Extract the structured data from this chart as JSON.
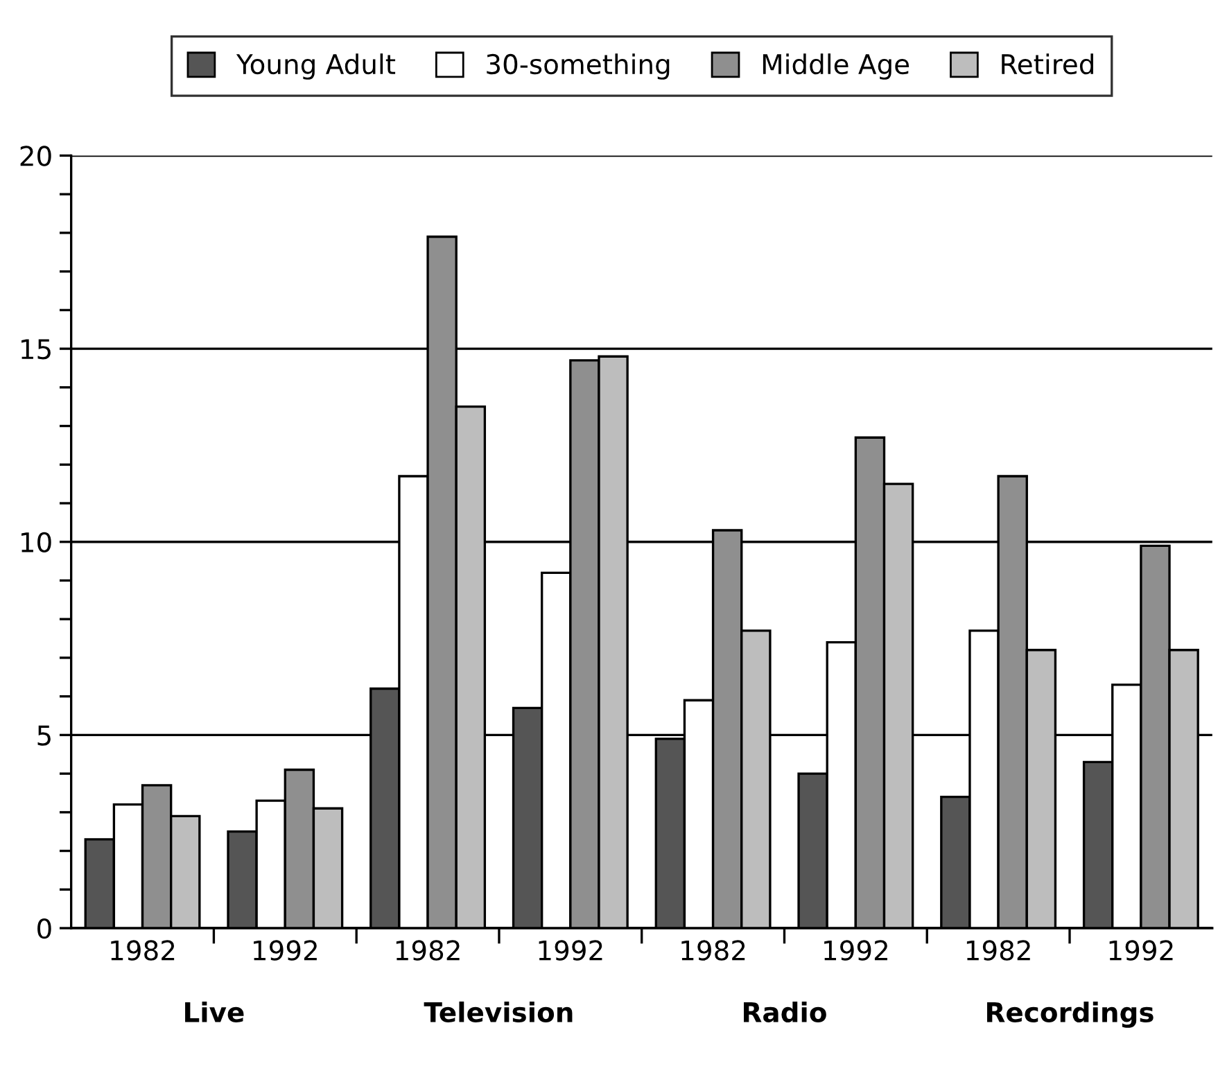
{
  "chart_data": {
    "type": "bar",
    "categories": [
      "1982",
      "1992",
      "1982",
      "1992",
      "1982",
      "1992",
      "1982",
      "1992"
    ],
    "annotations": [
      "Live",
      "Television",
      "Radio",
      "Recordings"
    ],
    "series": [
      {
        "name": "Young Adult",
        "color": "#555555",
        "values": [
          2.3,
          2.5,
          6.2,
          5.7,
          4.9,
          4.0,
          3.4,
          4.3
        ]
      },
      {
        "name": "30-something",
        "color": "#ffffff",
        "values": [
          3.2,
          3.3,
          11.7,
          9.2,
          5.9,
          7.4,
          7.7,
          6.3
        ]
      },
      {
        "name": "Middle Age",
        "color": "#8f8f8f",
        "values": [
          3.7,
          4.1,
          17.9,
          14.7,
          10.3,
          12.7,
          11.7,
          9.9
        ]
      },
      {
        "name": "Retired",
        "color": "#bdbdbd",
        "values": [
          2.9,
          3.1,
          13.5,
          14.8,
          7.7,
          11.5,
          7.2,
          7.2
        ]
      }
    ],
    "ylim": [
      0,
      20
    ],
    "yticks": [
      0,
      {
        "value": 1,
        "label": null
      },
      {
        "value": 2,
        "label": null
      },
      {
        "value": 3,
        "label": null
      },
      {
        "value": 4,
        "label": null
      },
      5,
      {
        "value": 6,
        "label": null
      },
      {
        "value": 7,
        "label": null
      },
      {
        "value": 8,
        "label": null
      },
      {
        "value": 9,
        "label": null
      },
      10,
      {
        "value": 11,
        "label": null
      },
      {
        "value": 12,
        "label": null
      },
      {
        "value": 13,
        "label": null
      },
      {
        "value": 14,
        "label": null
      },
      15,
      {
        "value": 16,
        "label": null
      },
      {
        "value": 17,
        "label": null
      },
      {
        "value": 18,
        "label": null
      },
      {
        "value": 19,
        "label": null
      },
      20
    ],
    "grid": "y",
    "legend": "top"
  }
}
